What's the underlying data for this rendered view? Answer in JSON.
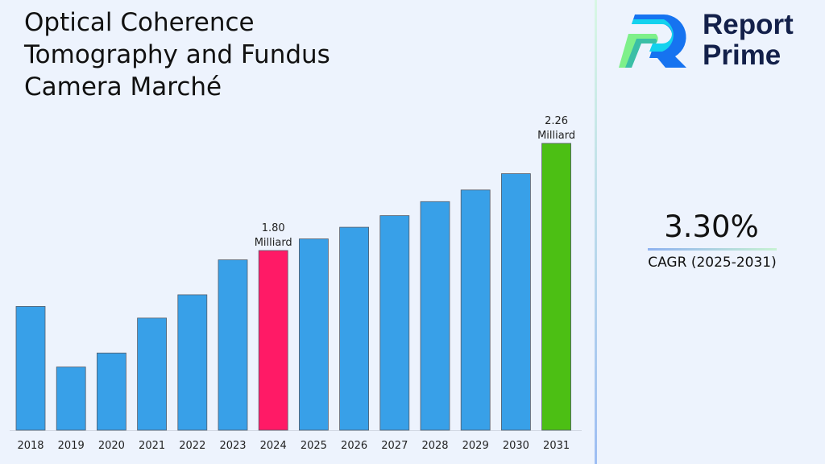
{
  "title": "Optical Coherence Tomography and Fundus Camera Marché",
  "logo": {
    "line1": "Report",
    "line2": "Prime"
  },
  "cagr": {
    "value": "3.30%",
    "label": "CAGR (2025-2031)"
  },
  "chart_data": {
    "type": "bar",
    "title": "Optical Coherence Tomography and Fundus Camera Marché",
    "xlabel": "",
    "ylabel": "",
    "categories": [
      "2018",
      "2019",
      "2020",
      "2021",
      "2022",
      "2023",
      "2024",
      "2025",
      "2026",
      "2027",
      "2028",
      "2029",
      "2030",
      "2031"
    ],
    "values": [
      1.56,
      1.3,
      1.36,
      1.51,
      1.61,
      1.76,
      1.8,
      1.85,
      1.9,
      1.95,
      2.01,
      2.06,
      2.13,
      2.26
    ],
    "ylim": [
      1.03,
      2.35
    ],
    "grid": false,
    "colors": {
      "default": "#38a0e8",
      "highlight_2024": "#ff1a66",
      "highlight_2031": "#4cbf14"
    },
    "data_labels": [
      {
        "category": "2024",
        "line1": "1.80",
        "line2": "Milliard"
      },
      {
        "category": "2031",
        "line1": "2.26",
        "line2": "Milliard"
      }
    ]
  }
}
